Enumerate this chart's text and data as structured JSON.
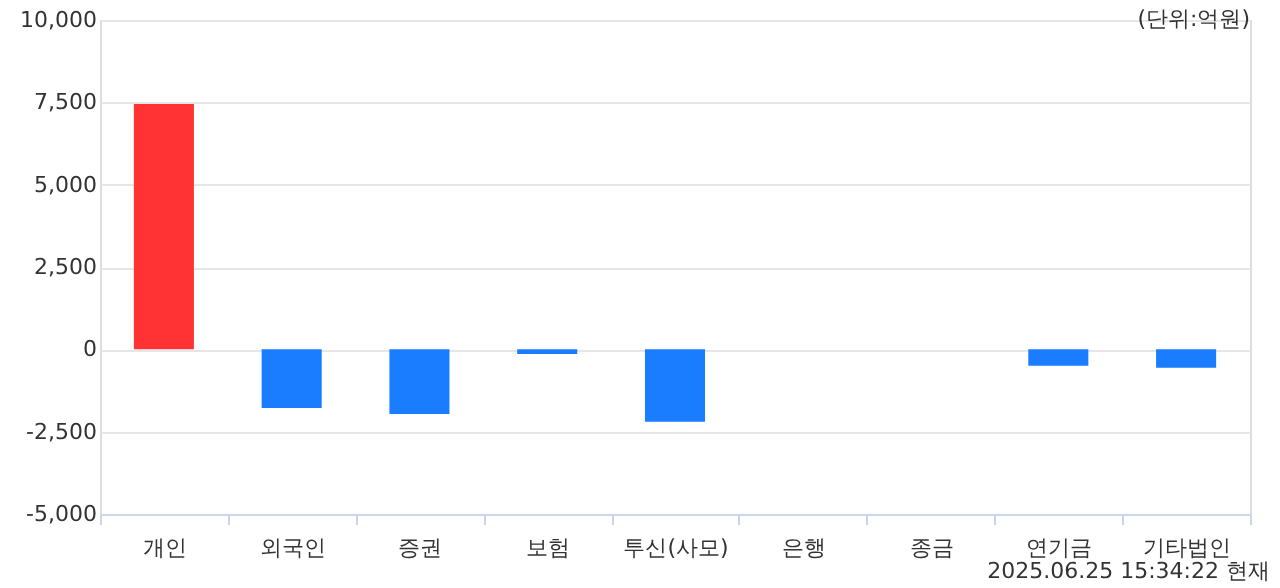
{
  "chart_data": {
    "type": "bar",
    "categories": [
      "개인",
      "외국인",
      "증권",
      "보험",
      "투신(사모)",
      "은행",
      "종금",
      "연기금",
      "기타법인"
    ],
    "values": [
      7450,
      -1780,
      -1960,
      -140,
      -2200,
      0,
      0,
      -500,
      -560
    ],
    "colors": [
      "#ff3333",
      "#1a7cff",
      "#1a7cff",
      "#1a7cff",
      "#1a7cff",
      "#1a7cff",
      "#1a7cff",
      "#1a7cff",
      "#1a7cff"
    ],
    "ylim": [
      -5000,
      10000
    ],
    "yticks": [
      {
        "value": -5000,
        "label": "-5,000"
      },
      {
        "value": -2500,
        "label": "-2,500"
      },
      {
        "value": 0,
        "label": "0"
      },
      {
        "value": 2500,
        "label": "2,500"
      },
      {
        "value": 5000,
        "label": "5,000"
      },
      {
        "value": 7500,
        "label": "7,500"
      },
      {
        "value": 10000,
        "label": "10,000"
      }
    ],
    "grid": "y",
    "annotations": [
      "(단위:억원)",
      "2025.06.25 15:34:22 현재"
    ]
  }
}
